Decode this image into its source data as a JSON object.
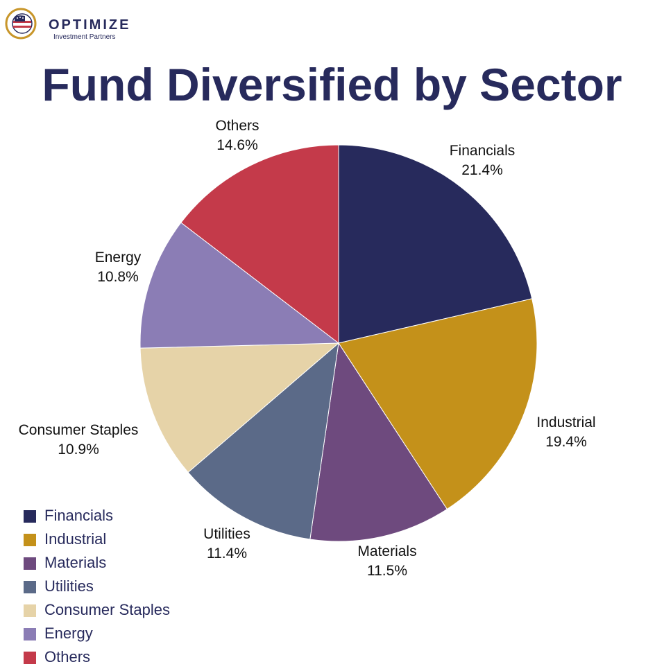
{
  "brand": {
    "name": "OPTIMIZE",
    "subtitle": "Investment Partners",
    "logo_icon": "flag-globe-icon",
    "colors": {
      "navy": "#272a5c",
      "gold": "#c8962a",
      "red": "#c43a48"
    }
  },
  "chart_data": {
    "type": "pie",
    "title": "Fund Diversified by Sector",
    "categories": [
      "Financials",
      "Industrial",
      "Materials",
      "Utilities",
      "Consumer Staples",
      "Energy",
      "Others"
    ],
    "values": [
      21.4,
      19.4,
      11.5,
      11.4,
      10.9,
      10.8,
      14.6
    ],
    "value_labels": [
      "21.4%",
      "19.4%",
      "11.5%",
      "11.4%",
      "10.9%",
      "10.8%",
      "14.6%"
    ],
    "colors": [
      "#272a5c",
      "#c4911a",
      "#6e4a7e",
      "#5b6a88",
      "#e6d3a8",
      "#8b7db5",
      "#c43a4a"
    ],
    "start_angle": "12 o'clock",
    "direction": "clockwise",
    "legend_position": "bottom-left"
  }
}
